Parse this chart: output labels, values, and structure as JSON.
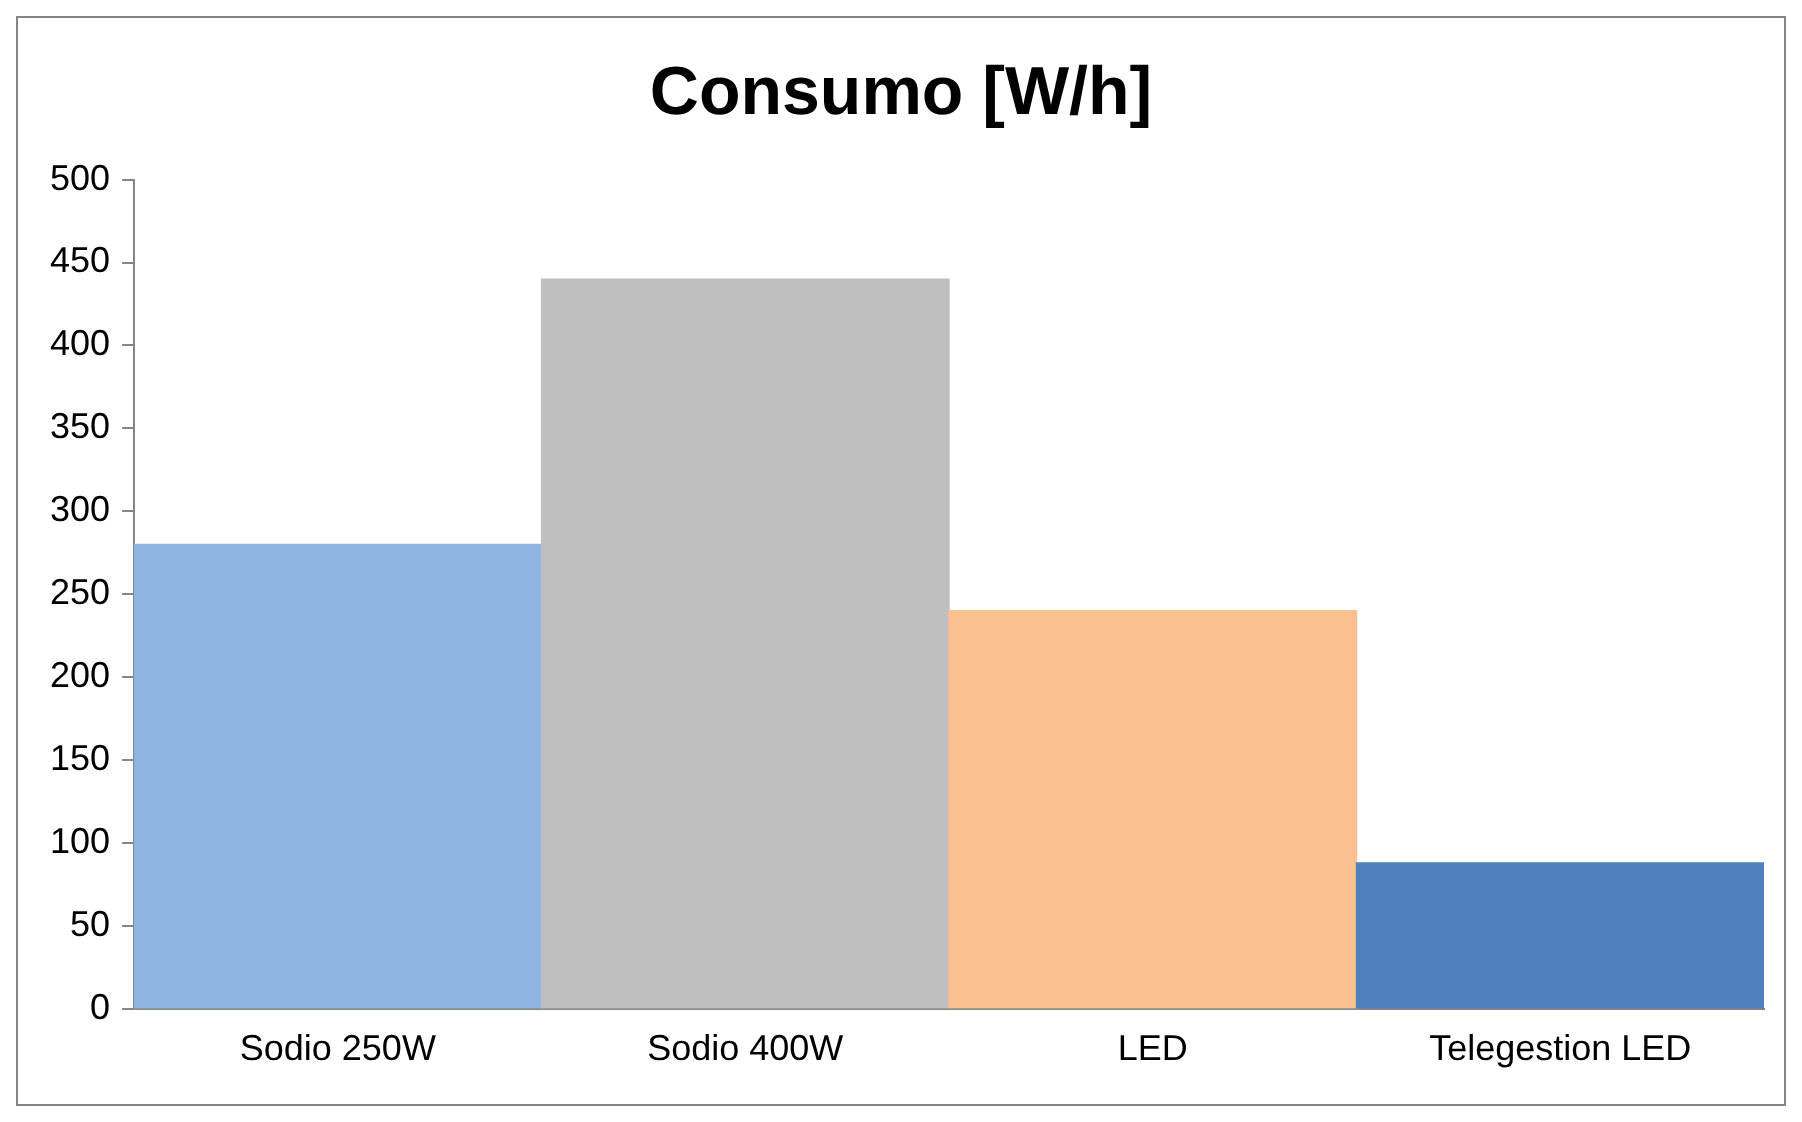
{
  "chart_data": {
    "type": "bar",
    "title": "Consumo [W/h]",
    "categories": [
      "Sodio 250W",
      "Sodio 400W",
      "LED",
      "Telegestion LED"
    ],
    "values": [
      280,
      440,
      240,
      88
    ],
    "colors": [
      "#8eb4e3",
      "#bfbfbf",
      "#fac090",
      "#4f81bd"
    ],
    "ylim": [
      0,
      500
    ],
    "yticks": [
      0,
      50,
      100,
      150,
      200,
      250,
      300,
      350,
      400,
      450,
      500
    ]
  }
}
